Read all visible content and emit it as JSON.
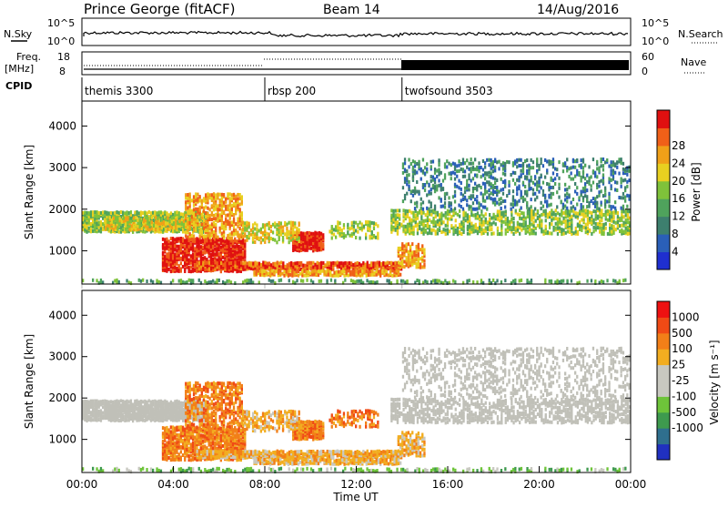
{
  "header": {
    "station": "Prince George (fitACF)",
    "beam": "Beam 14",
    "date": "14/Aug/2016"
  },
  "top_panels": {
    "nsky_label": "N.Sky",
    "nsky_tick_top": "10^5",
    "nsky_tick_bottom": "10^0",
    "nsearch_label": "N.Search",
    "nsearch_tick_top": "10^5",
    "nsearch_tick_bottom": "10^0",
    "freq_label": "Freq.",
    "freq_unit": "[MHz]",
    "freq_tick_top": "18",
    "freq_tick_bottom": "8",
    "nave_label": "Nave",
    "nave_tick_top": "60",
    "nave_tick_bottom": "0",
    "cpid_label": "CPID"
  },
  "cpid_segments": [
    {
      "name": "themis 3300",
      "start_hour": 0
    },
    {
      "name": "rbsp 200",
      "start_hour": 8
    },
    {
      "name": "twofsound 3503",
      "start_hour": 14
    }
  ],
  "colors": {
    "power": [
      "#1f2fd0",
      "#2a5fb8",
      "#3d7f6e",
      "#4fa35c",
      "#7fc23a",
      "#e8d020",
      "#f0a018",
      "#f06018",
      "#e01010"
    ],
    "velocity": [
      "#ee1111",
      "#f04a15",
      "#f27f18",
      "#f2ad20",
      "#c8c8c0",
      "#c8c8c0",
      "#6ec43a",
      "#3e9a4e",
      "#2f6f8e",
      "#2030c0"
    ],
    "ground_scatter": "#c0c0b8"
  },
  "chart_data": [
    {
      "type": "heatmap",
      "name": "power",
      "ylabel": "Slant Range [km]",
      "xlabel": "",
      "yticks": [
        1000,
        2000,
        3000,
        4000
      ],
      "ylim": [
        200,
        4600
      ],
      "xlim_hours": [
        0,
        24
      ],
      "colorbar_label": "Power [dB]",
      "colorbar_ticks": [
        "4",
        "8",
        "12",
        "16",
        "20",
        "24",
        "28"
      ],
      "colorbar_range": [
        0,
        30
      ]
    },
    {
      "type": "heatmap",
      "name": "velocity",
      "ylabel": "Slant Range [km]",
      "xlabel": "Time UT",
      "yticks": [
        1000,
        2000,
        3000,
        4000
      ],
      "ylim": [
        200,
        4600
      ],
      "xlim_hours": [
        0,
        24
      ],
      "xticks": [
        "00:00",
        "04:00",
        "08:00",
        "12:00",
        "16:00",
        "20:00",
        "00:00"
      ],
      "colorbar_label": "Velocity [m s⁻¹]",
      "colorbar_ticks": [
        "1000",
        "500",
        "100",
        "25",
        "-25",
        "-100",
        "-500",
        "-1000"
      ]
    }
  ]
}
